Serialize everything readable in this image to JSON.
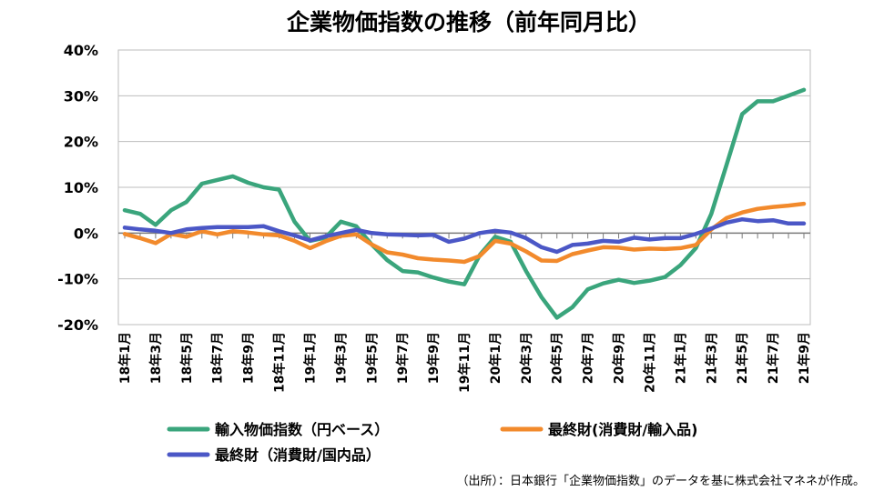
{
  "chart_data": {
    "type": "line",
    "title": "企業物価指数の推移（前年同月比）",
    "xlabel": "",
    "ylabel": "",
    "ylim": [
      -20,
      40
    ],
    "yticks": [
      40,
      30,
      20,
      10,
      0,
      -10,
      -20
    ],
    "ytick_labels": [
      "40%",
      "30%",
      "20%",
      "10%",
      "0%",
      "-10%",
      "-20%"
    ],
    "x_tick_labels": [
      "18年1月",
      "18年3月",
      "18年5月",
      "18年7月",
      "18年9月",
      "18年11月",
      "19年1月",
      "19年3月",
      "19年5月",
      "19年7月",
      "19年9月",
      "19年11月",
      "20年1月",
      "20年3月",
      "20年5月",
      "20年7月",
      "20年9月",
      "20年11月",
      "21年1月",
      "21年3月",
      "21年5月",
      "21年7月",
      "21年9月"
    ],
    "categories": [
      "18年1月",
      "18年2月",
      "18年3月",
      "18年4月",
      "18年5月",
      "18年6月",
      "18年7月",
      "18年8月",
      "18年9月",
      "18年10月",
      "18年11月",
      "18年12月",
      "19年1月",
      "19年2月",
      "19年3月",
      "19年4月",
      "19年5月",
      "19年6月",
      "19年7月",
      "19年8月",
      "19年9月",
      "19年10月",
      "19年11月",
      "19年12月",
      "20年1月",
      "20年2月",
      "20年3月",
      "20年4月",
      "20年5月",
      "20年6月",
      "20年7月",
      "20年8月",
      "20年9月",
      "20年10月",
      "20年11月",
      "20年12月",
      "21年1月",
      "21年2月",
      "21年3月",
      "21年4月",
      "21年5月",
      "21年6月",
      "21年7月",
      "21年8月",
      "21年9月"
    ],
    "series": [
      {
        "name": "輸入物価指数（円ベース）",
        "color": "#3aa57c",
        "values": [
          5.0,
          4.2,
          1.8,
          5.0,
          6.8,
          10.8,
          11.6,
          12.4,
          11.0,
          10.0,
          9.5,
          2.5,
          -1.7,
          -1.0,
          2.5,
          1.5,
          -2.5,
          -5.9,
          -8.3,
          -8.6,
          -9.7,
          -10.6,
          -11.2,
          -4.8,
          -0.8,
          -1.9,
          -8.3,
          -14.0,
          -18.5,
          -16.2,
          -12.3,
          -11.0,
          -10.2,
          -10.9,
          -10.4,
          -9.6,
          -7.0,
          -3.3,
          4.2,
          15.0,
          26.0,
          28.8,
          28.8,
          30.0,
          31.3
        ]
      },
      {
        "name": "最終財(消費財/輸入品)",
        "color": "#f28a2c",
        "values": [
          -0.2,
          -1.1,
          -2.2,
          -0.2,
          -0.8,
          0.4,
          -0.3,
          0.4,
          0.1,
          -0.3,
          -0.5,
          -1.7,
          -3.3,
          -1.8,
          -0.6,
          -0.3,
          -2.5,
          -4.2,
          -4.7,
          -5.5,
          -5.8,
          -6.0,
          -6.3,
          -5.0,
          -1.7,
          -2.3,
          -4.0,
          -6.0,
          -6.1,
          -4.6,
          -3.8,
          -3.1,
          -3.2,
          -3.6,
          -3.4,
          -3.5,
          -3.3,
          -2.6,
          0.8,
          3.3,
          4.5,
          5.3,
          5.7,
          6.0,
          6.4
        ]
      },
      {
        "name": "最終財（消費財/国内品）",
        "color": "#4b57c6",
        "values": [
          1.2,
          0.8,
          0.5,
          0.0,
          0.8,
          1.1,
          1.3,
          1.3,
          1.3,
          1.5,
          0.4,
          -0.5,
          -1.6,
          -0.7,
          0.0,
          0.7,
          0.0,
          -0.3,
          -0.4,
          -0.5,
          -0.4,
          -1.9,
          -1.2,
          0.0,
          0.5,
          0.1,
          -1.1,
          -3.1,
          -4.1,
          -2.6,
          -2.3,
          -1.7,
          -1.9,
          -1.0,
          -1.4,
          -1.1,
          -1.1,
          -0.2,
          1.0,
          2.3,
          3.0,
          2.6,
          2.8,
          2.1,
          2.1
        ]
      }
    ],
    "grid": "horizontal",
    "legend": "bottom"
  },
  "source_note": "（出所）：日本銀行「企業物価指数」のデータを基に株式会社マネネが作成。"
}
